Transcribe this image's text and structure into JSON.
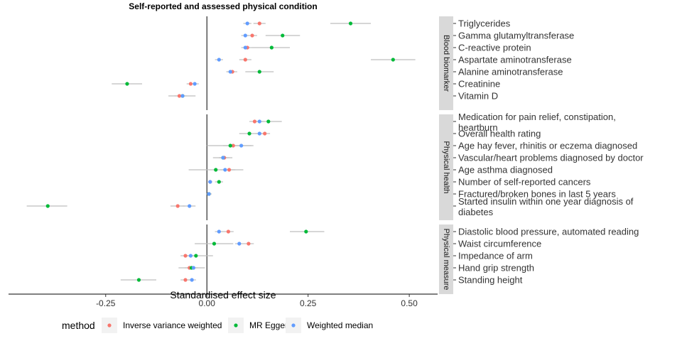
{
  "chart_data": {
    "type": "scatter",
    "title": "Self-reported and assessed physical condition",
    "xlabel": "Standardised effect size",
    "xlim": [
      -0.49,
      0.57
    ],
    "x_ticks": [
      {
        "value": -0.25,
        "label": "-0.25"
      },
      {
        "value": 0,
        "label": "0.00"
      },
      {
        "value": 0.25,
        "label": "0.25"
      },
      {
        "value": 0.5,
        "label": "0.50"
      }
    ],
    "legend": {
      "title": "method",
      "position": "bottom",
      "entries": [
        {
          "key": "ivw",
          "label": "Inverse variance weighted",
          "color": "#F8766D"
        },
        {
          "key": "egger",
          "label": "MR Egger",
          "color": "#00BA38"
        },
        {
          "key": "wm",
          "label": "Weighted median",
          "color": "#619CFF"
        }
      ]
    },
    "facets": [
      {
        "name": "Blood biomarker",
        "rows": [
          {
            "label": "Triglycerides",
            "points": [
              {
                "method": "ivw",
                "x": 0.13,
                "lo": 0.115,
                "hi": 0.145
              },
              {
                "method": "egger",
                "x": 0.355,
                "lo": 0.305,
                "hi": 0.405
              },
              {
                "method": "wm",
                "x": 0.1,
                "lo": 0.09,
                "hi": 0.11
              }
            ]
          },
          {
            "label": "Gamma glutamyltransferase",
            "points": [
              {
                "method": "ivw",
                "x": 0.112,
                "lo": 0.1,
                "hi": 0.124
              },
              {
                "method": "egger",
                "x": 0.187,
                "lo": 0.145,
                "hi": 0.23
              },
              {
                "method": "wm",
                "x": 0.095,
                "lo": 0.085,
                "hi": 0.105
              }
            ]
          },
          {
            "label": "C-reactive protein",
            "points": [
              {
                "method": "ivw",
                "x": 0.1,
                "lo": 0.09,
                "hi": 0.11
              },
              {
                "method": "egger",
                "x": 0.16,
                "lo": 0.11,
                "hi": 0.205
              },
              {
                "method": "wm",
                "x": 0.095,
                "lo": 0.085,
                "hi": 0.105
              }
            ]
          },
          {
            "label": "Aspartate aminotransferase",
            "points": [
              {
                "method": "ivw",
                "x": 0.095,
                "lo": 0.08,
                "hi": 0.11
              },
              {
                "method": "egger",
                "x": 0.46,
                "lo": 0.405,
                "hi": 0.515
              },
              {
                "method": "wm",
                "x": 0.03,
                "lo": 0.02,
                "hi": 0.04
              }
            ]
          },
          {
            "label": "Alanine aminotransferase",
            "points": [
              {
                "method": "ivw",
                "x": 0.063,
                "lo": 0.05,
                "hi": 0.075
              },
              {
                "method": "egger",
                "x": 0.13,
                "lo": 0.095,
                "hi": 0.165
              },
              {
                "method": "wm",
                "x": 0.058,
                "lo": 0.048,
                "hi": 0.068
              }
            ]
          },
          {
            "label": "Creatinine",
            "points": [
              {
                "method": "ivw",
                "x": -0.04,
                "lo": -0.05,
                "hi": -0.03
              },
              {
                "method": "egger",
                "x": -0.197,
                "lo": -0.235,
                "hi": -0.16
              },
              {
                "method": "wm",
                "x": -0.03,
                "lo": -0.04,
                "hi": -0.02
              }
            ]
          },
          {
            "label": "Vitamin D",
            "points": [
              {
                "method": "ivw",
                "x": -0.068,
                "lo": -0.08,
                "hi": -0.056
              },
              {
                "method": "egger",
                "x": -0.06,
                "lo": -0.095,
                "hi": -0.028
              },
              {
                "method": "wm",
                "x": -0.06,
                "lo": -0.07,
                "hi": -0.05
              }
            ]
          }
        ]
      },
      {
        "name": "Physical health",
        "rows": [
          {
            "label": "Medication for pain relief, constipation,\nheartburn",
            "points": [
              {
                "method": "ivw",
                "x": 0.118,
                "lo": 0.105,
                "hi": 0.13
              },
              {
                "method": "egger",
                "x": 0.152,
                "lo": 0.12,
                "hi": 0.185
              },
              {
                "method": "wm",
                "x": 0.13,
                "lo": 0.12,
                "hi": 0.14
              }
            ]
          },
          {
            "label": "Overall health rating",
            "points": [
              {
                "method": "ivw",
                "x": 0.143,
                "lo": 0.13,
                "hi": 0.156
              },
              {
                "method": "egger",
                "x": 0.105,
                "lo": 0.08,
                "hi": 0.13
              },
              {
                "method": "wm",
                "x": 0.13,
                "lo": 0.12,
                "hi": 0.14
              }
            ]
          },
          {
            "label": "Age hay fever, rhinitis or eczema diagnosed",
            "points": [
              {
                "method": "ivw",
                "x": 0.065,
                "lo": 0.04,
                "hi": 0.09
              },
              {
                "method": "egger",
                "x": 0.058,
                "lo": 0.0,
                "hi": 0.115
              },
              {
                "method": "wm",
                "x": 0.085,
                "lo": 0.06,
                "hi": 0.11
              }
            ]
          },
          {
            "label": "Vascular/heart problems diagnosed by doctor",
            "points": [
              {
                "method": "ivw",
                "x": 0.043,
                "lo": 0.03,
                "hi": 0.056
              },
              {
                "method": "egger",
                "x": 0.04,
                "lo": 0.015,
                "hi": 0.063
              },
              {
                "method": "wm",
                "x": 0.04,
                "lo": 0.03,
                "hi": 0.05
              }
            ]
          },
          {
            "label": "Age asthma diagnosed",
            "points": [
              {
                "method": "ivw",
                "x": 0.055,
                "lo": 0.04,
                "hi": 0.07
              },
              {
                "method": "egger",
                "x": 0.022,
                "lo": -0.045,
                "hi": 0.09
              },
              {
                "method": "wm",
                "x": 0.045,
                "lo": 0.033,
                "hi": 0.057
              }
            ]
          },
          {
            "label": "Number of self-reported cancers",
            "points": [
              {
                "method": "ivw",
                "x": 0.008,
                "lo": 0.003,
                "hi": 0.013
              },
              {
                "method": "egger",
                "x": 0.03,
                "lo": 0.02,
                "hi": 0.04
              },
              {
                "method": "wm",
                "x": 0.008,
                "lo": 0.003,
                "hi": 0.013
              }
            ]
          },
          {
            "label": "Fractured/broken bones in last 5 years",
            "points": [
              {
                "method": "ivw",
                "x": 0.005,
                "lo": 0.0,
                "hi": 0.01
              },
              {
                "method": "egger",
                "x": 0.005,
                "lo": -0.002,
                "hi": 0.012
              },
              {
                "method": "wm",
                "x": 0.005,
                "lo": 0.0,
                "hi": 0.01
              }
            ]
          },
          {
            "label": "Started insulin within one year diagnosis of\ndiabetes",
            "points": [
              {
                "method": "ivw",
                "x": -0.072,
                "lo": -0.09,
                "hi": -0.055
              },
              {
                "method": "egger",
                "x": -0.393,
                "lo": -0.445,
                "hi": -0.345
              },
              {
                "method": "wm",
                "x": -0.043,
                "lo": -0.06,
                "hi": -0.028
              }
            ]
          }
        ]
      },
      {
        "name": "Physical measure",
        "rows": [
          {
            "label": "Diastolic blood pressure, automated reading",
            "points": [
              {
                "method": "ivw",
                "x": 0.053,
                "lo": 0.04,
                "hi": 0.066
              },
              {
                "method": "egger",
                "x": 0.245,
                "lo": 0.205,
                "hi": 0.29
              },
              {
                "method": "wm",
                "x": 0.03,
                "lo": 0.02,
                "hi": 0.04
              }
            ]
          },
          {
            "label": "Waist circumference",
            "points": [
              {
                "method": "ivw",
                "x": 0.103,
                "lo": 0.09,
                "hi": 0.116
              },
              {
                "method": "egger",
                "x": 0.018,
                "lo": -0.03,
                "hi": 0.065
              },
              {
                "method": "wm",
                "x": 0.08,
                "lo": 0.07,
                "hi": 0.09
              }
            ]
          },
          {
            "label": "Impedance of arm",
            "points": [
              {
                "method": "ivw",
                "x": -0.053,
                "lo": -0.065,
                "hi": -0.04
              },
              {
                "method": "egger",
                "x": -0.027,
                "lo": -0.055,
                "hi": 0.015
              },
              {
                "method": "wm",
                "x": -0.04,
                "lo": -0.05,
                "hi": -0.03
              }
            ]
          },
          {
            "label": "Hand grip strength",
            "points": [
              {
                "method": "ivw",
                "x": -0.043,
                "lo": -0.055,
                "hi": -0.03
              },
              {
                "method": "egger",
                "x": -0.038,
                "lo": -0.07,
                "hi": -0.005
              },
              {
                "method": "wm",
                "x": -0.033,
                "lo": -0.043,
                "hi": -0.023
              }
            ]
          },
          {
            "label": "Standing height",
            "points": [
              {
                "method": "ivw",
                "x": -0.053,
                "lo": -0.065,
                "hi": -0.04
              },
              {
                "method": "egger",
                "x": -0.168,
                "lo": -0.213,
                "hi": -0.125
              },
              {
                "method": "wm",
                "x": -0.037,
                "lo": -0.047,
                "hi": -0.027
              }
            ]
          }
        ]
      }
    ]
  }
}
